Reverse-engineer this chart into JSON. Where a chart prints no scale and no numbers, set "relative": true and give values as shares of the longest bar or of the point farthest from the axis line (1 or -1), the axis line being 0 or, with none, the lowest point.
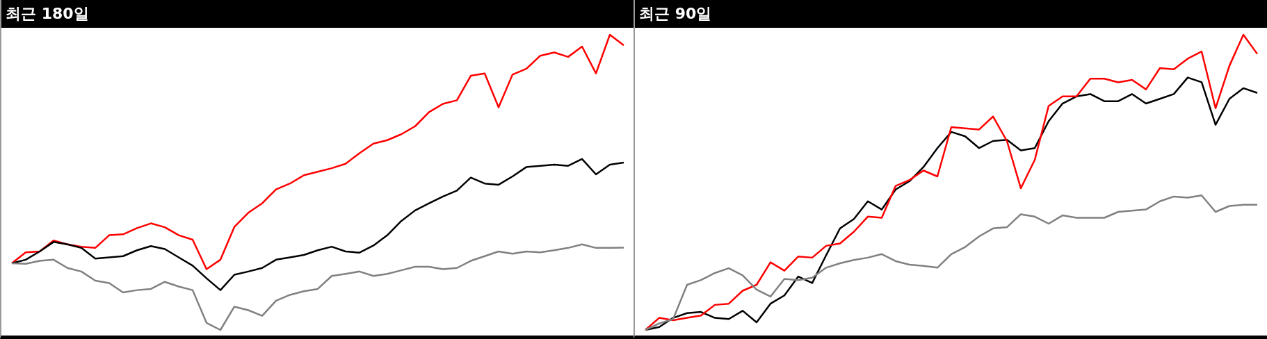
{
  "chart_data": [
    {
      "type": "line",
      "title": "최근 180일",
      "relative": true,
      "categories": [
        null,
        null,
        null,
        null,
        null,
        null,
        null,
        null,
        null,
        null,
        null,
        null,
        null,
        null,
        null,
        null,
        null,
        null,
        null,
        null,
        null,
        null,
        null,
        null,
        null,
        null,
        null,
        null,
        null,
        null,
        null,
        null,
        null,
        null,
        null,
        null,
        null,
        null,
        null,
        null,
        null,
        null,
        null,
        null,
        null
      ],
      "series": [
        {
          "color": "#808080",
          "values": [
            0.226,
            0.224,
            0.234,
            0.238,
            0.21,
            0.198,
            0.167,
            0.159,
            0.127,
            0.135,
            0.139,
            0.163,
            0.147,
            0.135,
            0.024,
            0,
            0.079,
            0.067,
            0.048,
            0.099,
            0.119,
            0.131,
            0.139,
            0.183,
            0.19,
            0.198,
            0.183,
            0.19,
            0.202,
            0.214,
            0.214,
            0.206,
            0.21,
            0.234,
            0.25,
            0.266,
            0.258,
            0.266,
            0.263,
            0.27,
            0.278,
            0.29,
            0.278,
            0.278,
            0.279
          ]
        },
        {
          "color": "#000000",
          "values": [
            0.226,
            0.238,
            0.266,
            0.298,
            0.29,
            0.278,
            0.242,
            0.246,
            0.25,
            0.27,
            0.284,
            0.274,
            0.246,
            0.218,
            0.175,
            0.135,
            0.187,
            0.198,
            0.21,
            0.238,
            0.246,
            0.254,
            0.27,
            0.282,
            0.266,
            0.262,
            0.286,
            0.321,
            0.369,
            0.405,
            0.429,
            0.452,
            0.472,
            0.516,
            0.496,
            0.492,
            0.52,
            0.552,
            0.556,
            0.56,
            0.556,
            0.579,
            0.527,
            0.56,
            0.567
          ]
        },
        {
          "color": "#ff0000",
          "values": [
            0.226,
            0.263,
            0.266,
            0.303,
            0.29,
            0.282,
            0.278,
            0.321,
            0.324,
            0.345,
            0.361,
            0.348,
            0.321,
            0.306,
            0.206,
            0.238,
            0.349,
            0.397,
            0.429,
            0.476,
            0.496,
            0.524,
            0.536,
            0.548,
            0.563,
            0.599,
            0.631,
            0.643,
            0.663,
            0.69,
            0.738,
            0.766,
            0.778,
            0.861,
            0.869,
            0.754,
            0.865,
            0.885,
            0.929,
            0.94,
            0.925,
            0.96,
            0.869,
            1.0,
            0.964
          ]
        }
      ]
    },
    {
      "type": "line",
      "title": "최근 90일",
      "relative": true,
      "categories": [
        null,
        null,
        null,
        null,
        null,
        null,
        null,
        null,
        null,
        null,
        null,
        null,
        null,
        null,
        null,
        null,
        null,
        null,
        null,
        null,
        null,
        null,
        null,
        null,
        null,
        null,
        null,
        null,
        null,
        null,
        null,
        null,
        null,
        null,
        null,
        null,
        null,
        null,
        null,
        null,
        null,
        null,
        null,
        null,
        null
      ],
      "series": [
        {
          "color": "#808080",
          "values": [
            0,
            0.022,
            0.037,
            0.153,
            0.169,
            0.193,
            0.209,
            0.185,
            0.137,
            0.113,
            0.173,
            0.169,
            0.177,
            0.211,
            0.226,
            0.237,
            0.245,
            0.257,
            0.233,
            0.221,
            0.217,
            0.211,
            0.257,
            0.281,
            0.317,
            0.344,
            0.348,
            0.392,
            0.384,
            0.36,
            0.388,
            0.38,
            0.38,
            0.38,
            0.4,
            0.404,
            0.408,
            0.436,
            0.452,
            0.448,
            0.456,
            0.4,
            0.42,
            0.424,
            0.424
          ]
        },
        {
          "color": "#ff0000",
          "values": [
            0,
            0.041,
            0.033,
            0.041,
            0.049,
            0.085,
            0.089,
            0.133,
            0.153,
            0.229,
            0.201,
            0.249,
            0.245,
            0.285,
            0.293,
            0.333,
            0.384,
            0.38,
            0.488,
            0.508,
            0.54,
            0.52,
            0.687,
            0.683,
            0.679,
            0.723,
            0.64,
            0.48,
            0.576,
            0.759,
            0.791,
            0.791,
            0.851,
            0.851,
            0.839,
            0.847,
            0.815,
            0.887,
            0.883,
            0.919,
            0.943,
            0.751,
            0.895,
            1.0,
            0.935
          ]
        },
        {
          "color": "#000000",
          "values": [
            0,
            0.01,
            0.041,
            0.057,
            0.061,
            0.041,
            0.037,
            0.065,
            0.026,
            0.089,
            0.117,
            0.181,
            0.159,
            0.253,
            0.344,
            0.376,
            0.436,
            0.408,
            0.476,
            0.504,
            0.552,
            0.616,
            0.671,
            0.656,
            0.616,
            0.64,
            0.644,
            0.608,
            0.616,
            0.707,
            0.767,
            0.791,
            0.799,
            0.775,
            0.775,
            0.799,
            0.767,
            0.783,
            0.799,
            0.855,
            0.839,
            0.695,
            0.783,
            0.819,
            0.803
          ]
        }
      ]
    }
  ]
}
